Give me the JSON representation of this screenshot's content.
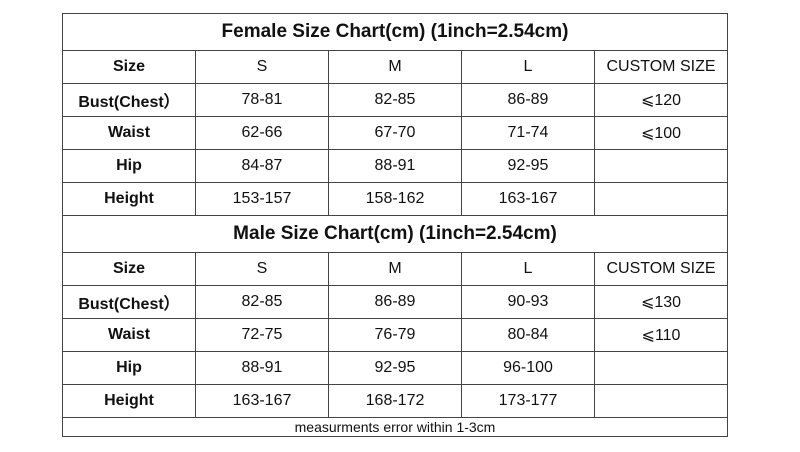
{
  "tables": [
    {
      "title": "Female Size Chart(cm) (1inch=2.54cm)",
      "header": [
        "Size",
        "S",
        "M",
        "L",
        "CUSTOM SIZE"
      ],
      "rows": [
        [
          "Bust(Chest）",
          "78-81",
          "82-85",
          "86-89",
          "⩽120"
        ],
        [
          "Waist",
          "62-66",
          "67-70",
          "71-74",
          "⩽100"
        ],
        [
          "Hip",
          "84-87",
          "88-91",
          "92-95"
        ],
        [
          "Height",
          "153-157",
          "158-162",
          "163-167"
        ]
      ]
    },
    {
      "title": "Male Size Chart(cm) (1inch=2.54cm)",
      "header": [
        "Size",
        "S",
        "M",
        "L",
        "CUSTOM SIZE"
      ],
      "rows": [
        [
          "Bust(Chest）",
          "82-85",
          "86-89",
          "90-93",
          "⩽130"
        ],
        [
          "Waist",
          "72-75",
          "76-79",
          "80-84",
          "⩽110"
        ],
        [
          "Hip",
          "88-91",
          "92-95",
          "96-100"
        ],
        [
          "Height",
          "163-167",
          "168-172",
          "173-177"
        ]
      ]
    }
  ],
  "note": "measurments error within 1-3cm"
}
